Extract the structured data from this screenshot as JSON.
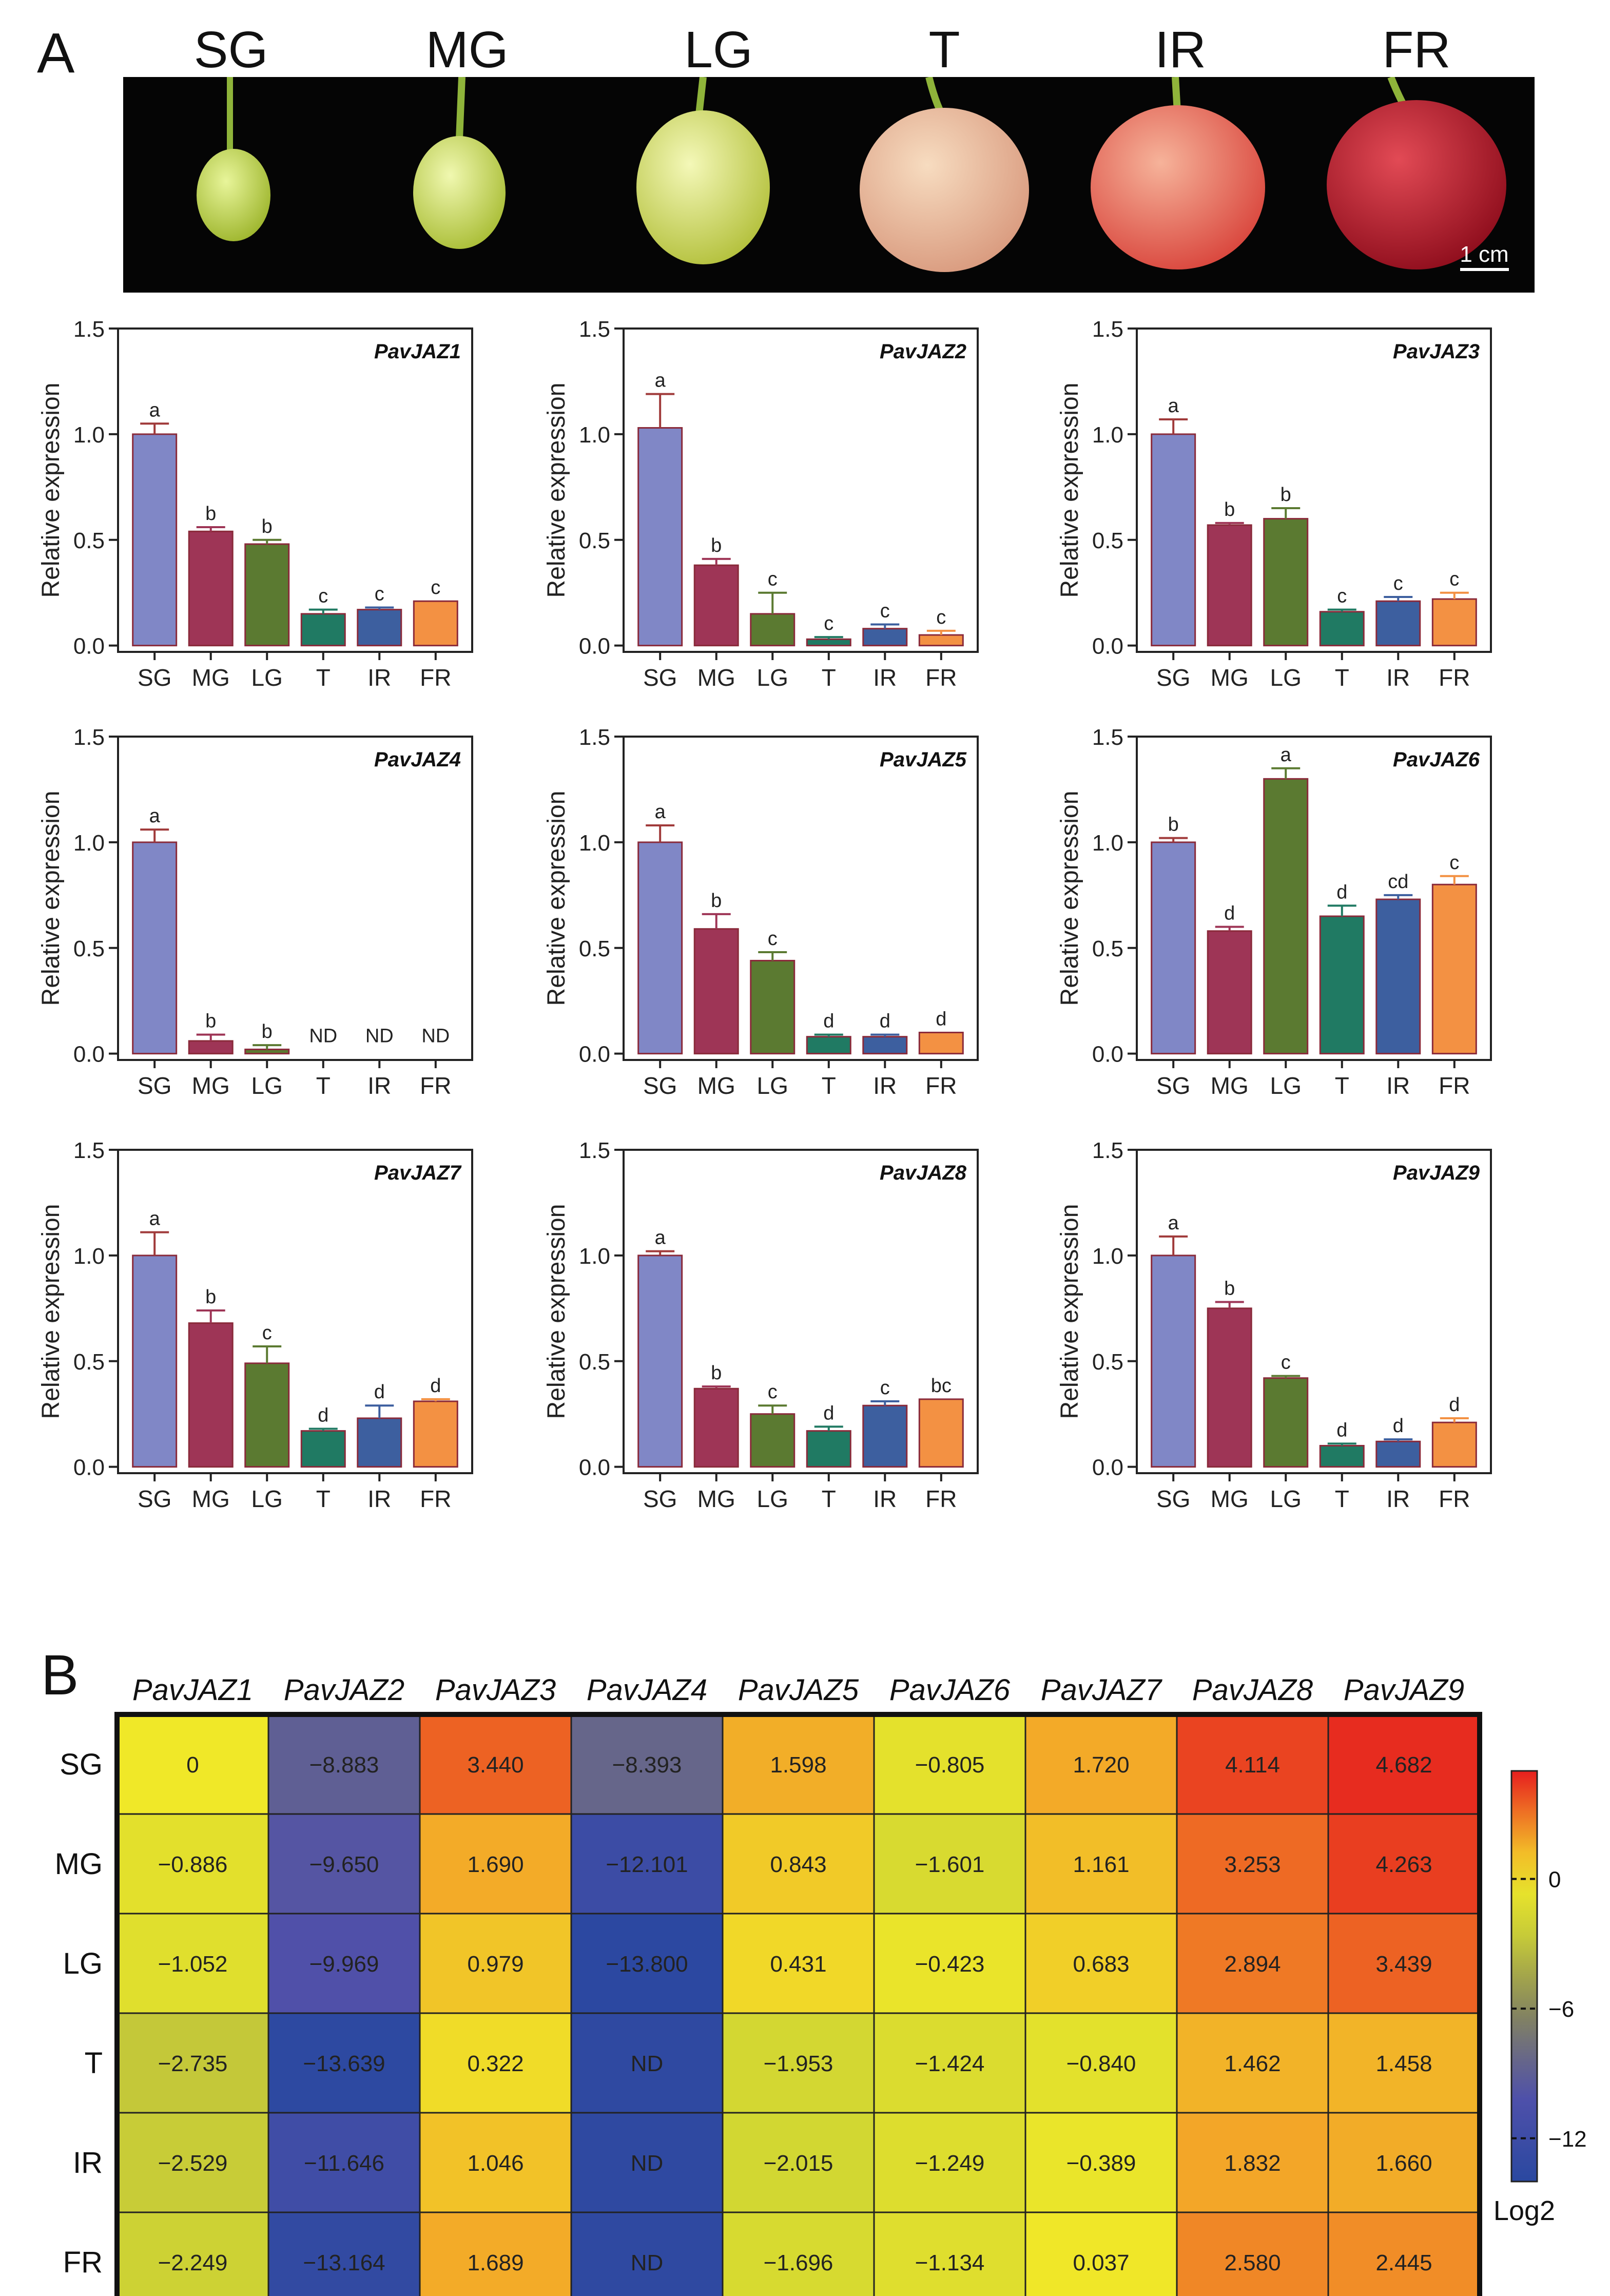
{
  "panel_labels": {
    "a": "A",
    "b": "B"
  },
  "stages": [
    "SG",
    "MG",
    "LG",
    "T",
    "IR",
    "FR"
  ],
  "scale_bar": "1 cm",
  "bar_colors": [
    "#8087c6",
    "#9e3556",
    "#5b7a31",
    "#207a63",
    "#3d5f9f",
    "#f39143"
  ],
  "chart_data": [
    {
      "type": "bar",
      "title": "PavJAZ1",
      "ylabel": "Relative expression",
      "ylim": [
        0,
        1.5
      ],
      "yticks": [
        "0.0",
        "0.5",
        "1.0",
        "1.5"
      ],
      "categories": [
        "SG",
        "MG",
        "LG",
        "T",
        "IR",
        "FR"
      ],
      "values": [
        1.0,
        0.54,
        0.48,
        0.15,
        0.17,
        0.21
      ],
      "errors": [
        0.05,
        0.02,
        0.02,
        0.02,
        0.01,
        0.0
      ],
      "letters": [
        "a",
        "b",
        "b",
        "c",
        "c",
        "c"
      ]
    },
    {
      "type": "bar",
      "title": "PavJAZ2",
      "ylabel": "Relative expression",
      "ylim": [
        0,
        1.5
      ],
      "yticks": [
        "0.0",
        "0.5",
        "1.0",
        "1.5"
      ],
      "categories": [
        "SG",
        "MG",
        "LG",
        "T",
        "IR",
        "FR"
      ],
      "values": [
        1.03,
        0.38,
        0.15,
        0.03,
        0.08,
        0.05
      ],
      "errors": [
        0.16,
        0.03,
        0.1,
        0.01,
        0.02,
        0.02
      ],
      "letters": [
        "a",
        "b",
        "c",
        "c",
        "c",
        "c"
      ]
    },
    {
      "type": "bar",
      "title": "PavJAZ3",
      "ylabel": "Relative expression",
      "ylim": [
        0,
        1.5
      ],
      "yticks": [
        "0.0",
        "0.5",
        "1.0",
        "1.5"
      ],
      "categories": [
        "SG",
        "MG",
        "LG",
        "T",
        "IR",
        "FR"
      ],
      "values": [
        1.0,
        0.57,
        0.6,
        0.16,
        0.21,
        0.22
      ],
      "errors": [
        0.07,
        0.01,
        0.05,
        0.01,
        0.02,
        0.03
      ],
      "letters": [
        "a",
        "b",
        "b",
        "c",
        "c",
        "c"
      ]
    },
    {
      "type": "bar",
      "title": "PavJAZ4",
      "ylabel": "Relative expression",
      "ylim": [
        0,
        1.5
      ],
      "yticks": [
        "0.0",
        "0.5",
        "1.0",
        "1.5"
      ],
      "categories": [
        "SG",
        "MG",
        "LG",
        "T",
        "IR",
        "FR"
      ],
      "values": [
        1.0,
        0.06,
        0.02,
        0,
        0,
        0
      ],
      "errors": [
        0.06,
        0.03,
        0.02,
        0,
        0,
        0
      ],
      "letters": [
        "a",
        "b",
        "b",
        "ND",
        "ND",
        "ND"
      ]
    },
    {
      "type": "bar",
      "title": "PavJAZ5",
      "ylabel": "Relative expression",
      "ylim": [
        0,
        1.5
      ],
      "yticks": [
        "0.0",
        "0.5",
        "1.0",
        "1.5"
      ],
      "categories": [
        "SG",
        "MG",
        "LG",
        "T",
        "IR",
        "FR"
      ],
      "values": [
        1.0,
        0.59,
        0.44,
        0.08,
        0.08,
        0.1
      ],
      "errors": [
        0.08,
        0.07,
        0.04,
        0.01,
        0.01,
        0.0
      ],
      "letters": [
        "a",
        "b",
        "c",
        "d",
        "d",
        "d"
      ]
    },
    {
      "type": "bar",
      "title": "PavJAZ6",
      "ylabel": "Relative expression",
      "ylim": [
        0,
        1.5
      ],
      "yticks": [
        "0.0",
        "0.5",
        "1.0",
        "1.5"
      ],
      "categories": [
        "SG",
        "MG",
        "LG",
        "T",
        "IR",
        "FR"
      ],
      "values": [
        1.0,
        0.58,
        1.3,
        0.65,
        0.73,
        0.8
      ],
      "errors": [
        0.02,
        0.02,
        0.05,
        0.05,
        0.02,
        0.04
      ],
      "letters": [
        "b",
        "d",
        "a",
        "d",
        "cd",
        "c"
      ]
    },
    {
      "type": "bar",
      "title": "PavJAZ7",
      "ylabel": "Relative expression",
      "ylim": [
        0,
        1.5
      ],
      "yticks": [
        "0.0",
        "0.5",
        "1.0",
        "1.5"
      ],
      "categories": [
        "SG",
        "MG",
        "LG",
        "T",
        "IR",
        "FR"
      ],
      "values": [
        1.0,
        0.68,
        0.49,
        0.17,
        0.23,
        0.31
      ],
      "errors": [
        0.11,
        0.06,
        0.08,
        0.01,
        0.06,
        0.01
      ],
      "letters": [
        "a",
        "b",
        "c",
        "d",
        "d",
        "d"
      ]
    },
    {
      "type": "bar",
      "title": "PavJAZ8",
      "ylabel": "Relative expression",
      "ylim": [
        0,
        1.5
      ],
      "yticks": [
        "0.0",
        "0.5",
        "1.0",
        "1.5"
      ],
      "categories": [
        "SG",
        "MG",
        "LG",
        "T",
        "IR",
        "FR"
      ],
      "values": [
        1.0,
        0.37,
        0.25,
        0.17,
        0.29,
        0.32
      ],
      "errors": [
        0.02,
        0.01,
        0.04,
        0.02,
        0.02,
        0.0
      ],
      "letters": [
        "a",
        "b",
        "c",
        "d",
        "c",
        "bc"
      ]
    },
    {
      "type": "bar",
      "title": "PavJAZ9",
      "ylabel": "Relative expression",
      "ylim": [
        0,
        1.5
      ],
      "yticks": [
        "0.0",
        "0.5",
        "1.0",
        "1.5"
      ],
      "categories": [
        "SG",
        "MG",
        "LG",
        "T",
        "IR",
        "FR"
      ],
      "values": [
        1.0,
        0.75,
        0.42,
        0.1,
        0.12,
        0.21
      ],
      "errors": [
        0.09,
        0.03,
        0.01,
        0.01,
        0.01,
        0.02
      ],
      "letters": [
        "a",
        "b",
        "c",
        "d",
        "d",
        "d"
      ]
    },
    {
      "type": "heatmap",
      "columns": [
        "PavJAZ1",
        "PavJAZ2",
        "PavJAZ3",
        "PavJAZ4",
        "PavJAZ5",
        "PavJAZ6",
        "PavJAZ7",
        "PavJAZ8",
        "PavJAZ9"
      ],
      "rows": [
        "SG",
        "MG",
        "LG",
        "T",
        "IR",
        "FR"
      ],
      "values": [
        [
          "0",
          "−8.883",
          "3.440",
          "−8.393",
          "1.598",
          "−0.805",
          "1.720",
          "4.114",
          "4.682"
        ],
        [
          "−0.886",
          "−9.650",
          "1.690",
          "−12.101",
          "0.843",
          "−1.601",
          "1.161",
          "3.253",
          "4.263"
        ],
        [
          "−1.052",
          "−9.969",
          "0.979",
          "−13.800",
          "0.431",
          "−0.423",
          "0.683",
          "2.894",
          "3.439"
        ],
        [
          "−2.735",
          "−13.639",
          "0.322",
          "ND",
          "−1.953",
          "−1.424",
          "−0.840",
          "1.462",
          "1.458"
        ],
        [
          "−2.529",
          "−11.646",
          "1.046",
          "ND",
          "−2.015",
          "−1.249",
          "−0.389",
          "1.832",
          "1.660"
        ],
        [
          "−2.249",
          "−13.164",
          "1.689",
          "ND",
          "−1.696",
          "−1.134",
          "0.037",
          "2.580",
          "2.445"
        ]
      ],
      "colorbar": {
        "ticks": [
          "0",
          "−6",
          "−12"
        ],
        "label": "Log2",
        "range": [
          -14,
          5
        ]
      }
    }
  ]
}
